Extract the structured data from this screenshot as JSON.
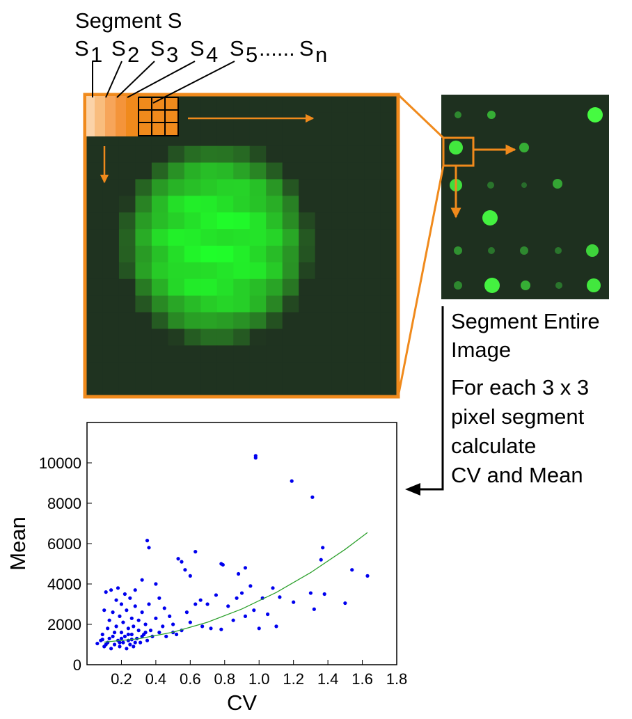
{
  "diagram": {
    "title": "Segment S",
    "segments": [
      {
        "letter": "S",
        "index": "1"
      },
      {
        "letter": "S",
        "index": "2"
      },
      {
        "letter": "S",
        "index": "3"
      },
      {
        "letter": "S",
        "index": "4"
      },
      {
        "letter": "S",
        "index": "5"
      },
      {
        "letter": "S",
        "index": "n"
      }
    ],
    "ellipsis": "......",
    "note_lines": [
      "Segment Entire",
      "Image"
    ],
    "steps_lines": [
      "For each 3 x 3",
      "pixel segment",
      "calculate",
      "CV and Mean"
    ]
  },
  "chart_data": {
    "type": "scatter",
    "x_label": "CV",
    "y_label": "Mean",
    "xlim": [
      0,
      1.8
    ],
    "ylim": [
      0,
      12000
    ],
    "xticks": [
      0.2,
      0.4,
      0.6,
      0.8,
      {
        "value": 1,
        "label": "1.0"
      },
      1.2,
      1.4,
      1.6,
      1.8
    ],
    "yticks": [
      0,
      2000,
      4000,
      6000,
      8000,
      10000
    ],
    "grid": false,
    "series": [
      {
        "mode": "markers",
        "color": "#0000ee",
        "x": [
          0.06,
          0.08,
          0.09,
          0.1,
          0.1,
          0.11,
          0.12,
          0.12,
          0.13,
          0.14,
          0.14,
          0.15,
          0.15,
          0.16,
          0.17,
          0.17,
          0.18,
          0.18,
          0.19,
          0.19,
          0.2,
          0.2,
          0.21,
          0.21,
          0.22,
          0.22,
          0.23,
          0.23,
          0.24,
          0.24,
          0.25,
          0.25,
          0.26,
          0.26,
          0.27,
          0.27,
          0.28,
          0.29,
          0.3,
          0.3,
          0.31,
          0.32,
          0.33,
          0.34,
          0.35,
          0.36,
          0.37,
          0.38,
          0.4,
          0.42,
          0.44,
          0.46,
          0.5,
          0.52,
          0.13,
          0.16,
          0.2,
          0.24,
          0.28,
          0.32,
          0.11,
          0.19,
          0.09,
          0.26,
          0.34,
          0.98,
          0.98,
          1.19,
          1.31,
          0.35,
          0.36,
          0.63,
          0.53,
          0.55,
          0.57,
          0.6,
          0.78,
          0.79,
          0.92,
          0.88,
          1.37,
          1.36,
          1.54,
          1.63,
          1.5,
          1.32,
          1.3,
          1.38,
          1.2,
          1.12,
          1.08,
          1.02,
          0.95,
          0.9,
          0.87,
          0.82,
          0.75,
          0.7,
          0.66,
          0.63,
          0.58,
          0.6,
          0.67,
          0.72,
          0.78,
          0.85,
          0.92,
          0.97,
          1.05,
          1.1,
          1.0,
          0.55,
          0.5,
          0.48,
          0.45,
          0.42,
          0.4,
          0.32,
          0.28
        ],
        "y": [
          1050,
          1200,
          1500,
          2700,
          900,
          3600,
          1800,
          1100,
          2200,
          800,
          3700,
          1400,
          2600,
          1000,
          3200,
          1900,
          1200,
          3800,
          2400,
          900,
          1600,
          3000,
          1100,
          2100,
          3500,
          1400,
          800,
          2700,
          1800,
          1200,
          3300,
          1000,
          2300,
          1500,
          1900,
          900,
          2900,
          1300,
          2200,
          1700,
          1100,
          2600,
          1500,
          2000,
          1200,
          3000,
          1700,
          1400,
          2300,
          1600,
          1900,
          1400,
          2000,
          1500,
          1300,
          1600,
          1300,
          1500,
          1100,
          1400,
          1000,
          1100,
          1250,
          1250,
          1600,
          10350,
          10250,
          9100,
          8300,
          6150,
          5800,
          5600,
          5250,
          5100,
          4700,
          4400,
          5000,
          4950,
          4800,
          4500,
          5800,
          5200,
          4700,
          4400,
          3050,
          2750,
          3550,
          3500,
          3100,
          3350,
          3800,
          3300,
          3900,
          3550,
          3300,
          2900,
          3450,
          3000,
          3200,
          3000,
          2600,
          2100,
          1900,
          1800,
          1750,
          2200,
          2400,
          2700,
          2500,
          1900,
          1800,
          1700,
          1600,
          2400,
          2800,
          3300,
          4000,
          4200,
          3700
        ]
      },
      {
        "mode": "line",
        "color": "#2ca02c",
        "x": [
          0.1,
          0.3,
          0.5,
          0.7,
          0.9,
          1.1,
          1.3,
          1.5,
          1.63
        ],
        "y": [
          1120,
          1285,
          1613,
          2105,
          2761,
          3581,
          4565,
          5713,
          6547
        ]
      }
    ]
  }
}
